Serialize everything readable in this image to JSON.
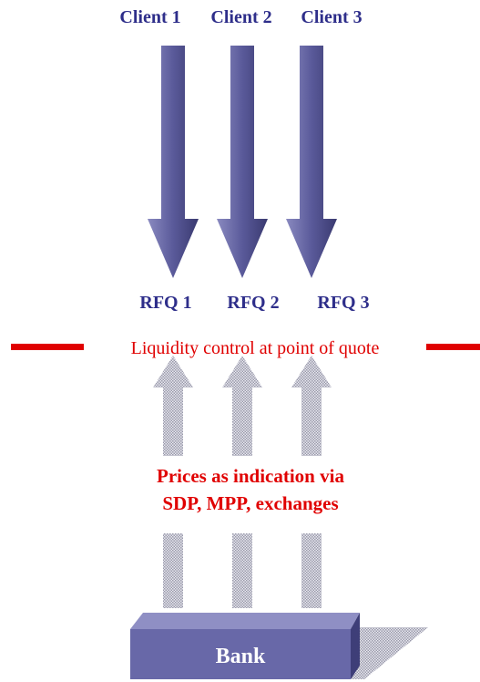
{
  "clients": [
    "Client 1",
    "Client 2",
    "Client 3"
  ],
  "rfqs": [
    "RFQ 1",
    "RFQ 2",
    "RFQ 3"
  ],
  "control": "Liquidity control at point of quote",
  "prices": [
    "Prices as indication via",
    "SDP, MPP, exchanges"
  ],
  "bank": "Bank"
}
